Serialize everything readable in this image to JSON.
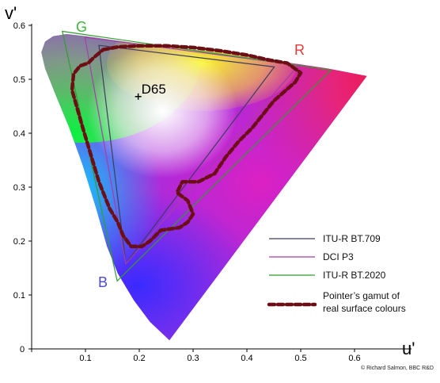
{
  "chart_data": {
    "type": "scatter",
    "title": "",
    "xlabel": "u'",
    "ylabel": "v'",
    "xlim": [
      0,
      0.64
    ],
    "ylim": [
      0,
      0.6
    ],
    "x_ticks": [
      "0",
      "0.1",
      "0.2",
      "0.3",
      "0.4",
      "0.5",
      "0.6"
    ],
    "y_ticks": [
      "0",
      "0.1",
      "0.2",
      "0.3",
      "0.4",
      "0.5",
      "0.6"
    ],
    "grid": false,
    "legend_position": "bottom-right",
    "white_point": {
      "name": "D65",
      "u": 0.198,
      "v": 0.468
    },
    "primary_labels": {
      "green": "G",
      "red": "R",
      "blue": "B"
    },
    "spectral_locus": [
      [
        0.256,
        0.016
      ],
      [
        0.22,
        0.05
      ],
      [
        0.19,
        0.09
      ],
      [
        0.16,
        0.14
      ],
      [
        0.14,
        0.19
      ],
      [
        0.12,
        0.26
      ],
      [
        0.095,
        0.34
      ],
      [
        0.07,
        0.41
      ],
      [
        0.045,
        0.47
      ],
      [
        0.025,
        0.52
      ],
      [
        0.018,
        0.55
      ],
      [
        0.025,
        0.57
      ],
      [
        0.04,
        0.58
      ],
      [
        0.065,
        0.584
      ],
      [
        0.1,
        0.58
      ],
      [
        0.15,
        0.573
      ],
      [
        0.25,
        0.56
      ],
      [
        0.35,
        0.55
      ],
      [
        0.45,
        0.535
      ],
      [
        0.55,
        0.52
      ],
      [
        0.623,
        0.506
      ]
    ],
    "series": [
      {
        "name": "ITU-R BT.709",
        "color": "#3d3d5c",
        "points": [
          [
            0.451,
            0.523
          ],
          [
            0.125,
            0.563
          ],
          [
            0.175,
            0.158
          ]
        ]
      },
      {
        "name": "DCI P3",
        "color": "#a43ea8",
        "points": [
          [
            0.496,
            0.526
          ],
          [
            0.099,
            0.578
          ],
          [
            0.175,
            0.158
          ]
        ]
      },
      {
        "name": "ITU-R BT.2020",
        "color": "#2f9e2f",
        "points": [
          [
            0.556,
            0.517
          ],
          [
            0.057,
            0.589
          ],
          [
            0.159,
            0.126
          ]
        ]
      },
      {
        "name": "Pointer’s gamut of real surface colours",
        "color": "#6b0f14",
        "points": [
          [
            0.133,
            0.555
          ],
          [
            0.16,
            0.56
          ],
          [
            0.2,
            0.562
          ],
          [
            0.25,
            0.562
          ],
          [
            0.3,
            0.559
          ],
          [
            0.35,
            0.553
          ],
          [
            0.4,
            0.545
          ],
          [
            0.44,
            0.536
          ],
          [
            0.475,
            0.53
          ],
          [
            0.5,
            0.512
          ],
          [
            0.49,
            0.495
          ],
          [
            0.45,
            0.46
          ],
          [
            0.41,
            0.41
          ],
          [
            0.385,
            0.385
          ],
          [
            0.36,
            0.355
          ],
          [
            0.34,
            0.325
          ],
          [
            0.31,
            0.31
          ],
          [
            0.28,
            0.31
          ],
          [
            0.27,
            0.29
          ],
          [
            0.29,
            0.275
          ],
          [
            0.3,
            0.25
          ],
          [
            0.29,
            0.235
          ],
          [
            0.275,
            0.225
          ],
          [
            0.24,
            0.22
          ],
          [
            0.22,
            0.2
          ],
          [
            0.205,
            0.19
          ],
          [
            0.185,
            0.19
          ],
          [
            0.17,
            0.21
          ],
          [
            0.16,
            0.235
          ],
          [
            0.145,
            0.26
          ],
          [
            0.125,
            0.31
          ],
          [
            0.11,
            0.36
          ],
          [
            0.095,
            0.41
          ],
          [
            0.085,
            0.445
          ],
          [
            0.075,
            0.48
          ],
          [
            0.078,
            0.51
          ],
          [
            0.09,
            0.525
          ],
          [
            0.105,
            0.53
          ],
          [
            0.115,
            0.54
          ],
          [
            0.133,
            0.555
          ]
        ]
      }
    ]
  },
  "legend": {
    "bt709": "ITU-R BT.709",
    "p3": "DCI P3",
    "bt2020": "ITU-R BT.2020",
    "pointer_line1": "Pointer’s gamut of",
    "pointer_line2": "real surface colours"
  },
  "credit": "© Richard Salmon, BBC R&D"
}
